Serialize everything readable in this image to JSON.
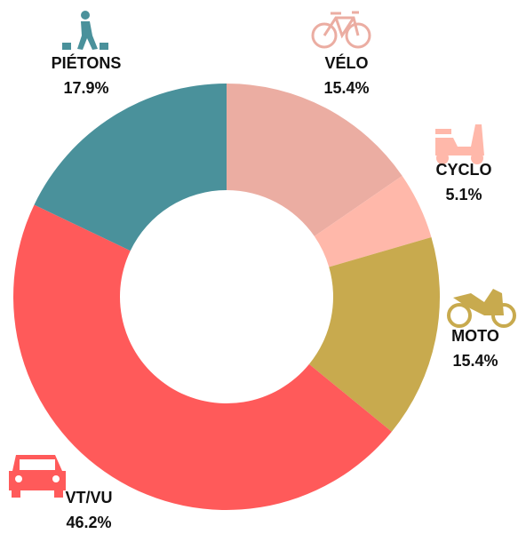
{
  "chart_data": {
    "type": "donut",
    "categories": [
      "VÉLO",
      "CYCLO",
      "MOTO",
      "VT/VU",
      "PIÉTONS"
    ],
    "values": [
      15.4,
      5.1,
      15.4,
      46.2,
      17.9
    ],
    "value_labels": [
      "15.4%",
      "5.1%",
      "15.4%",
      "46.2%",
      "17.9%"
    ],
    "colors": [
      "#ebada2",
      "#ffb8aa",
      "#c8aa4e",
      "#ff5a5a",
      "#4a919b"
    ]
  }
}
